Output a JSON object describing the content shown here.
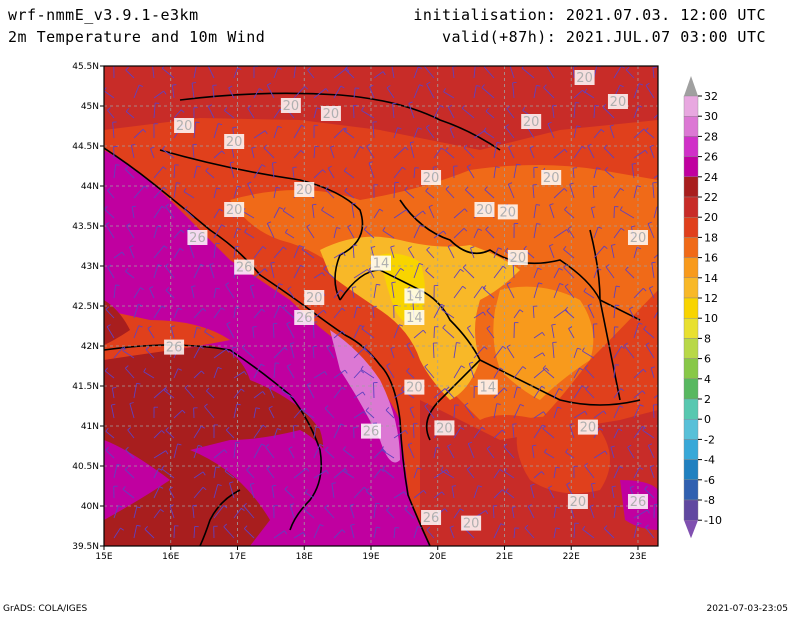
{
  "header": {
    "model": "wrf-nmmE_v3.9.1-e3km",
    "field": "2m Temperature and 10m Wind",
    "init": "initialisation: 2021.07.03. 12:00 UTC",
    "valid": "valid(+87h): 2021.JUL.07 03:00 UTC"
  },
  "map": {
    "lon_ticks": [
      "15E",
      "16E",
      "17E",
      "18E",
      "19E",
      "20E",
      "21E",
      "22E",
      "23E"
    ],
    "lat_ticks": [
      "45.5N",
      "45N",
      "44.5N",
      "44N",
      "43.5N",
      "43N",
      "42.5N",
      "42N",
      "41.5N",
      "41N",
      "40.5N",
      "40N",
      "39.5N"
    ],
    "contour_labels": [
      {
        "text": "20",
        "lon": 22.2,
        "lat": 45.35
      },
      {
        "text": "20",
        "lon": 22.7,
        "lat": 45.05
      },
      {
        "text": "20",
        "lon": 17.8,
        "lat": 45.0
      },
      {
        "text": "20",
        "lon": 18.4,
        "lat": 44.9
      },
      {
        "text": "20",
        "lon": 16.2,
        "lat": 44.75
      },
      {
        "text": "20",
        "lon": 21.4,
        "lat": 44.8
      },
      {
        "text": "20",
        "lon": 16.95,
        "lat": 44.55
      },
      {
        "text": "20",
        "lon": 19.9,
        "lat": 44.1
      },
      {
        "text": "20",
        "lon": 21.7,
        "lat": 44.1
      },
      {
        "text": "20",
        "lon": 18.0,
        "lat": 43.95
      },
      {
        "text": "20",
        "lon": 16.95,
        "lat": 43.7
      },
      {
        "text": "20",
        "lon": 20.7,
        "lat": 43.7
      },
      {
        "text": "20",
        "lon": 21.05,
        "lat": 43.67
      },
      {
        "text": "26",
        "lon": 16.4,
        "lat": 43.35
      },
      {
        "text": "20",
        "lon": 23.0,
        "lat": 43.35
      },
      {
        "text": "20",
        "lon": 21.2,
        "lat": 43.1
      },
      {
        "text": "14",
        "lon": 19.15,
        "lat": 43.03
      },
      {
        "text": "26",
        "lon": 17.1,
        "lat": 42.98
      },
      {
        "text": "14",
        "lon": 19.65,
        "lat": 42.62
      },
      {
        "text": "20",
        "lon": 18.15,
        "lat": 42.6
      },
      {
        "text": "26",
        "lon": 18.0,
        "lat": 42.35
      },
      {
        "text": "14",
        "lon": 19.65,
        "lat": 42.35
      },
      {
        "text": "26",
        "lon": 16.05,
        "lat": 41.98
      },
      {
        "text": "20",
        "lon": 19.65,
        "lat": 41.48
      },
      {
        "text": "14",
        "lon": 20.75,
        "lat": 41.48
      },
      {
        "text": "26",
        "lon": 19.0,
        "lat": 40.93
      },
      {
        "text": "20",
        "lon": 20.1,
        "lat": 40.97
      },
      {
        "text": "20",
        "lon": 22.25,
        "lat": 40.98
      },
      {
        "text": "20",
        "lon": 22.1,
        "lat": 40.05
      },
      {
        "text": "26",
        "lon": 23.0,
        "lat": 40.05
      },
      {
        "text": "26",
        "lon": 19.9,
        "lat": 39.85
      },
      {
        "text": "20",
        "lon": 20.5,
        "lat": 39.78
      }
    ]
  },
  "colorbar": {
    "labels": [
      "32",
      "30",
      "28",
      "26",
      "24",
      "22",
      "20",
      "18",
      "16",
      "14",
      "12",
      "10",
      "8",
      "6",
      "4",
      "2",
      "0",
      "-2",
      "-4",
      "-6",
      "-8",
      "-10"
    ],
    "colors": [
      "#e8a8e0",
      "#dc78d4",
      "#d030c8",
      "#c000a0",
      "#a81e1e",
      "#c82c28",
      "#e0401c",
      "#f06a18",
      "#f89a1c",
      "#f8b828",
      "#f8d400",
      "#e8e030",
      "#b8d848",
      "#88c848",
      "#58b860",
      "#58c8b0",
      "#58c0d8",
      "#38a8d8",
      "#2080c0",
      "#3060b0",
      "#6048a0",
      "#8050b0"
    ]
  },
  "footer": {
    "grads": "GrADS: COLA/IGES",
    "stamp": "2021-07-03-23:05"
  }
}
